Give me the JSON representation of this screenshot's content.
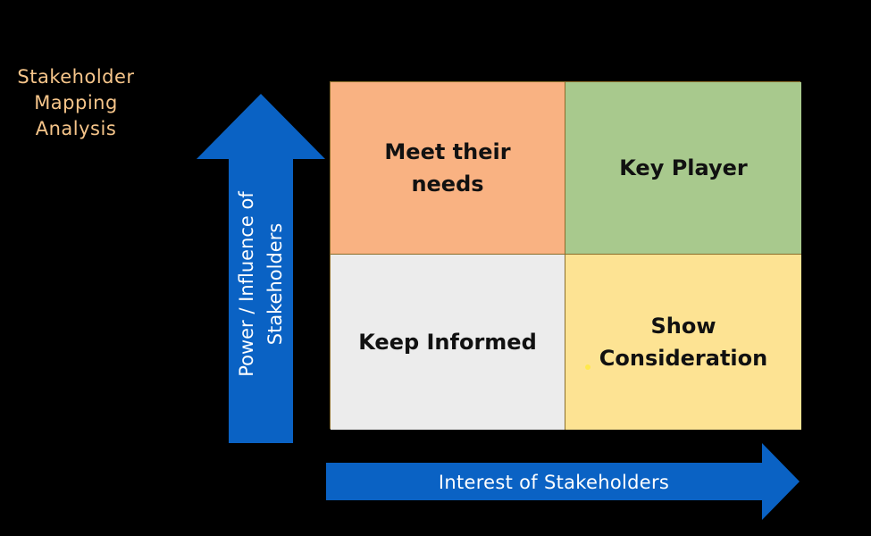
{
  "title": {
    "lines": [
      "Stakeholder",
      "Mapping",
      "Analysis"
    ],
    "color": "#f6c58a"
  },
  "matrix": {
    "top_left": {
      "label": "Meet their\nneeds",
      "color": "#f9b282"
    },
    "top_right": {
      "label": "Key Player",
      "color": "#a8c98d"
    },
    "bottom_left": {
      "label": "Keep Informed",
      "color": "#ececec"
    },
    "bottom_right": {
      "label": "Show\nConsideration",
      "color": "#fde393"
    }
  },
  "axes": {
    "vertical_label": "Power / Influence of\nStakeholders",
    "horizontal_label": "Interest of Stakeholders",
    "arrow_color": "#0a62c4"
  }
}
